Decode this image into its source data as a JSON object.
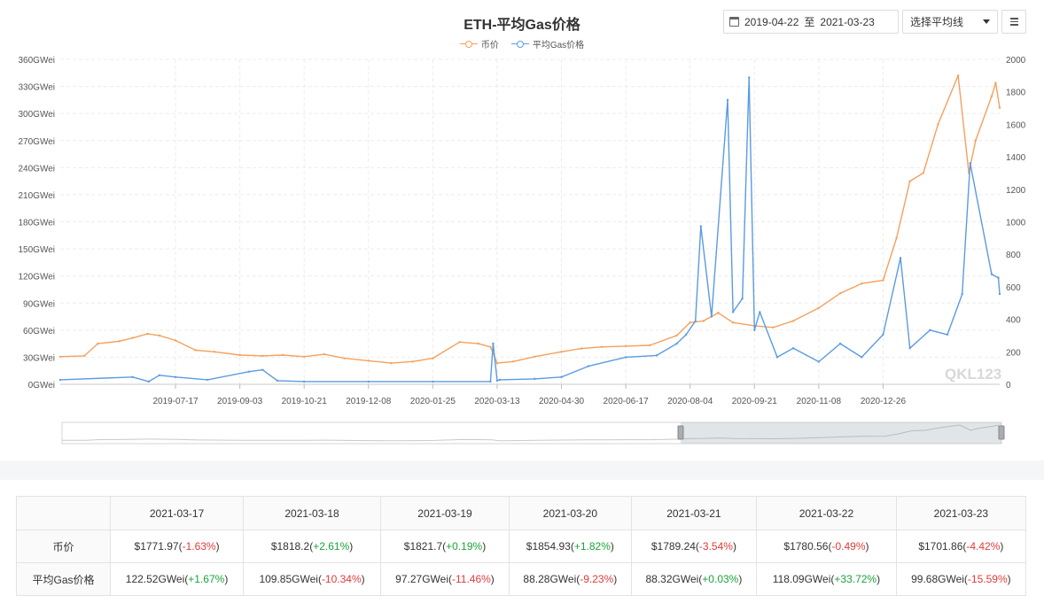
{
  "chart_title": "ETH-平均Gas价格",
  "controls": {
    "date_from": "2019-04-22",
    "date_sep": "至",
    "date_to": "2021-03-23",
    "avg_select_label": "选择平均线"
  },
  "colors": {
    "price": "#f5a05c",
    "gas": "#5b9be0",
    "up": "#1aa33b",
    "down": "#e33a3a"
  },
  "chart_data": {
    "type": "line",
    "title": "ETH-平均Gas价格",
    "x_ticks": [
      "2019-07-17",
      "2019-09-03",
      "2019-10-21",
      "2019-12-08",
      "2020-01-25",
      "2020-03-13",
      "2020-04-30",
      "2020-06-17",
      "2020-08-04",
      "2020-09-21",
      "2020-11-08",
      "2020-12-26"
    ],
    "y_left": {
      "unit": "GWei",
      "ylim": [
        0,
        360
      ],
      "ticks": [
        "0GWei",
        "30GWei",
        "60GWei",
        "90GWei",
        "120GWei",
        "150GWei",
        "180GWei",
        "210GWei",
        "240GWei",
        "270GWei",
        "300GWei",
        "330GWei",
        "360GWei"
      ]
    },
    "y_right": {
      "ylim": [
        0,
        2000
      ],
      "ticks": [
        "0",
        "200",
        "400",
        "600",
        "800",
        "1000",
        "1200",
        "1400",
        "1600",
        "1800",
        "2000"
      ]
    },
    "grid": true,
    "legend_position": "top-center",
    "watermark": "QKL123",
    "series": [
      {
        "name": "币价",
        "axis": "right",
        "x": [
          "2019-04-22",
          "2019-05-10",
          "2019-05-20",
          "2019-06-05",
          "2019-06-15",
          "2019-06-26",
          "2019-07-05",
          "2019-07-17",
          "2019-08-01",
          "2019-08-15",
          "2019-09-03",
          "2019-09-20",
          "2019-10-05",
          "2019-10-21",
          "2019-11-05",
          "2019-11-20",
          "2019-12-08",
          "2019-12-25",
          "2020-01-10",
          "2020-01-25",
          "2020-02-14",
          "2020-02-28",
          "2020-03-08",
          "2020-03-13",
          "2020-03-25",
          "2020-04-10",
          "2020-04-30",
          "2020-05-15",
          "2020-05-30",
          "2020-06-17",
          "2020-07-05",
          "2020-07-25",
          "2020-08-04",
          "2020-08-14",
          "2020-08-25",
          "2020-09-05",
          "2020-09-21",
          "2020-10-05",
          "2020-10-20",
          "2020-11-08",
          "2020-11-24",
          "2020-12-10",
          "2020-12-26",
          "2021-01-05",
          "2021-01-15",
          "2021-01-25",
          "2021-02-05",
          "2021-02-20",
          "2021-02-28",
          "2021-03-05",
          "2021-03-17",
          "2021-03-20",
          "2021-03-23"
        ],
        "values": [
          170,
          175,
          250,
          265,
          285,
          310,
          300,
          270,
          210,
          200,
          180,
          175,
          180,
          170,
          185,
          160,
          145,
          130,
          140,
          160,
          260,
          250,
          230,
          130,
          140,
          170,
          200,
          220,
          230,
          235,
          240,
          300,
          380,
          390,
          440,
          380,
          360,
          350,
          390,
          470,
          560,
          620,
          640,
          900,
          1250,
          1300,
          1600,
          1900,
          1300,
          1500,
          1772,
          1855,
          1702
        ]
      },
      {
        "name": "平均Gas价格",
        "axis": "left",
        "x": [
          "2019-04-22",
          "2019-06-15",
          "2019-06-27",
          "2019-07-05",
          "2019-07-17",
          "2019-08-10",
          "2019-09-10",
          "2019-09-20",
          "2019-10-01",
          "2019-10-21",
          "2019-12-08",
          "2020-01-25",
          "2020-03-08",
          "2020-03-10",
          "2020-03-13",
          "2020-03-15",
          "2020-04-10",
          "2020-04-30",
          "2020-05-20",
          "2020-06-17",
          "2020-07-10",
          "2020-07-25",
          "2020-08-01",
          "2020-08-08",
          "2020-08-12",
          "2020-08-20",
          "2020-09-01",
          "2020-09-05",
          "2020-09-12",
          "2020-09-17",
          "2020-09-21",
          "2020-09-25",
          "2020-10-08",
          "2020-10-20",
          "2020-11-08",
          "2020-11-24",
          "2020-12-10",
          "2020-12-26",
          "2021-01-08",
          "2021-01-15",
          "2021-01-30",
          "2021-02-12",
          "2021-02-23",
          "2021-03-01",
          "2021-03-17",
          "2021-03-22",
          "2021-03-23"
        ],
        "values": [
          5,
          8,
          3,
          10,
          8,
          5,
          14,
          16,
          4,
          3,
          3,
          3,
          3,
          45,
          4,
          5,
          6,
          8,
          20,
          30,
          32,
          45,
          55,
          70,
          175,
          75,
          315,
          80,
          95,
          340,
          60,
          80,
          30,
          40,
          25,
          45,
          30,
          55,
          140,
          40,
          60,
          55,
          100,
          245,
          122,
          118,
          100
        ]
      }
    ]
  },
  "table": {
    "dates": [
      "2021-03-17",
      "2021-03-18",
      "2021-03-19",
      "2021-03-20",
      "2021-03-21",
      "2021-03-22",
      "2021-03-23"
    ],
    "rows": [
      {
        "label": "币价",
        "cells": [
          {
            "value": "$1771.97",
            "change": "-1.63%",
            "dir": "down"
          },
          {
            "value": "$1818.2",
            "change": "+2.61%",
            "dir": "up"
          },
          {
            "value": "$1821.7",
            "change": "+0.19%",
            "dir": "up"
          },
          {
            "value": "$1854.93",
            "change": "+1.82%",
            "dir": "up"
          },
          {
            "value": "$1789.24",
            "change": "-3.54%",
            "dir": "down"
          },
          {
            "value": "$1780.56",
            "change": "-0.49%",
            "dir": "down"
          },
          {
            "value": "$1701.86",
            "change": "-4.42%",
            "dir": "down"
          }
        ]
      },
      {
        "label": "平均Gas价格",
        "cells": [
          {
            "value": "122.52GWei",
            "change": "+1.67%",
            "dir": "up"
          },
          {
            "value": "109.85GWei",
            "change": "-10.34%",
            "dir": "down"
          },
          {
            "value": "97.27GWei",
            "change": "-11.46%",
            "dir": "down"
          },
          {
            "value": "88.28GWei",
            "change": "-9.23%",
            "dir": "down"
          },
          {
            "value": "88.32GWei",
            "change": "+0.03%",
            "dir": "up"
          },
          {
            "value": "118.09GWei",
            "change": "+33.72%",
            "dir": "up"
          },
          {
            "value": "99.68GWei",
            "change": "-15.59%",
            "dir": "down"
          }
        ]
      }
    ]
  }
}
